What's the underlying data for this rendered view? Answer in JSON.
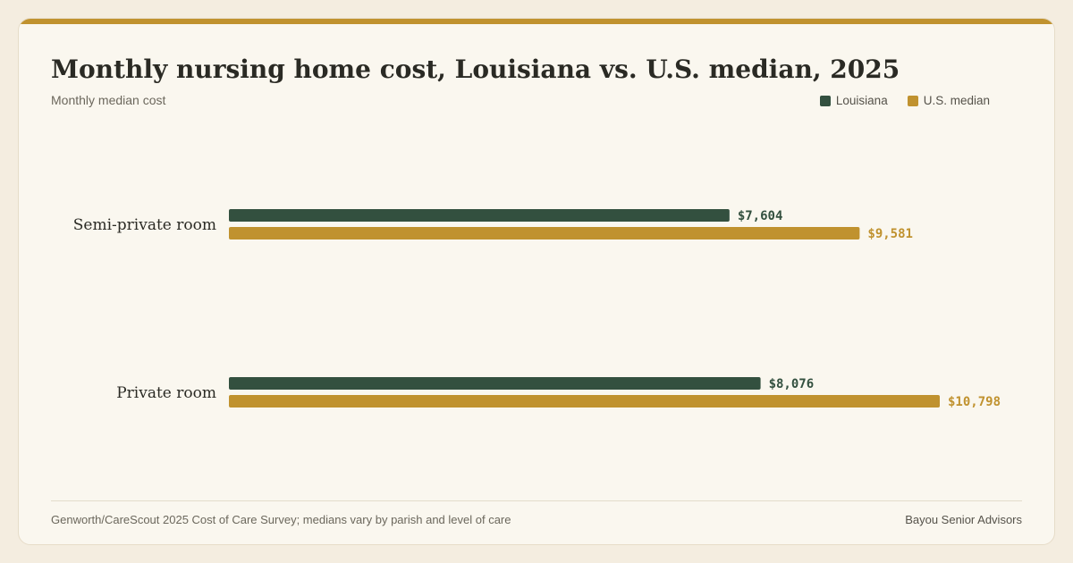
{
  "chart_data": {
    "type": "bar",
    "orientation": "horizontal",
    "title": "Monthly nursing home cost, Louisiana vs. U.S. median, 2025",
    "subtitle": "Monthly median cost",
    "categories": [
      "Semi-private room",
      "Private room"
    ],
    "series": [
      {
        "name": "Louisiana",
        "values": [
          7604,
          8076
        ],
        "value_labels": [
          "$7,604",
          "$8,076"
        ],
        "color": "#33503f"
      },
      {
        "name": "U.S. median",
        "values": [
          9581,
          10798
        ],
        "value_labels": [
          "$9,581",
          "$10,798"
        ],
        "color": "#c0922f"
      }
    ],
    "xlim": [
      0,
      10798
    ],
    "grid": false,
    "legend_position": "top-right"
  },
  "footer": {
    "source": "Genworth/CareScout 2025 Cost of Care Survey; medians vary by parish and level of care",
    "brand": "Bayou Senior Advisors"
  },
  "colors": {
    "accent": "#c0922f",
    "background": "#faf7ef"
  }
}
